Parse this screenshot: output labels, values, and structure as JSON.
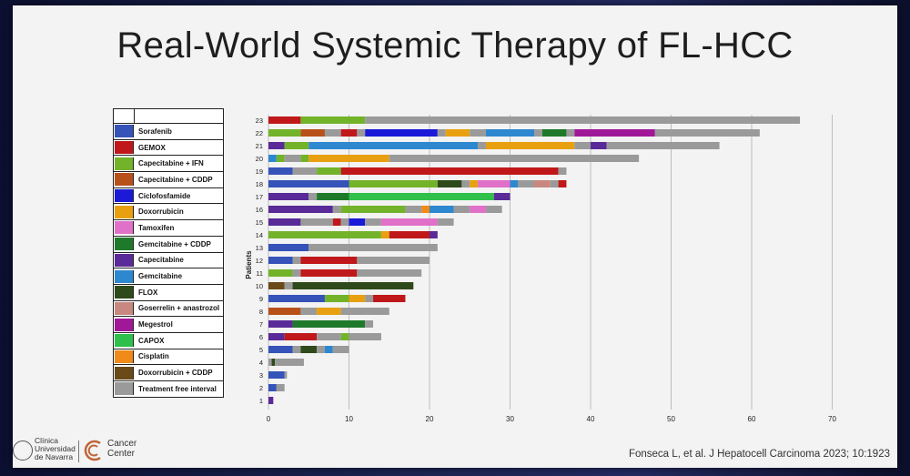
{
  "title": "Real-World Systemic Therapy of FL-HCC",
  "legend": [
    {
      "label": "Sorafenib",
      "color": "#3553b8"
    },
    {
      "label": "GEMOX",
      "color": "#c0181a"
    },
    {
      "label": "Capecitabine + IFN",
      "color": "#72b32a"
    },
    {
      "label": "Capecitabine + CDDP",
      "color": "#b8501a"
    },
    {
      "label": "Ciclofosfamide",
      "color": "#1a1ad8"
    },
    {
      "label": "Doxorrubicin",
      "color": "#e8a010"
    },
    {
      "label": "Tamoxifen",
      "color": "#e070c8"
    },
    {
      "label": "Gemcitabine + CDDP",
      "color": "#1e7a2a"
    },
    {
      "label": "Capecitabine",
      "color": "#5a2a98"
    },
    {
      "label": "Gemcitabine",
      "color": "#2e88d0"
    },
    {
      "label": "FLOX",
      "color": "#2e4a1a"
    },
    {
      "label": "Goserrelin + anastrozol",
      "color": "#c88880"
    },
    {
      "label": "Megestrol",
      "color": "#a01898"
    },
    {
      "label": "CAPOX",
      "color": "#2ec04a"
    },
    {
      "label": "Cisplatin",
      "color": "#f08a18"
    },
    {
      "label": "Doxorrubicin + CDDP",
      "color": "#6a4a18"
    },
    {
      "label": "Treatment free interval",
      "color": "#9a9a9a"
    }
  ],
  "chart_data": {
    "type": "bar",
    "orientation": "horizontal-stacked",
    "ylabel": "Patients",
    "xlabel": "",
    "xlim": [
      0,
      70
    ],
    "xticks": [
      0,
      10,
      20,
      30,
      40,
      50,
      60,
      70
    ],
    "grid": true,
    "patients": [
      {
        "id": "23",
        "segments": [
          [
            "GEMOX",
            4
          ],
          [
            "Capecitabine + IFN",
            8
          ],
          [
            "Treatment free interval",
            54
          ]
        ]
      },
      {
        "id": "22",
        "segments": [
          [
            "Capecitabine + IFN",
            4
          ],
          [
            "Capecitabine + CDDP",
            3
          ],
          [
            "Treatment free interval",
            2
          ],
          [
            "GEMOX",
            2
          ],
          [
            "Treatment free interval",
            1
          ],
          [
            "Ciclofosfamide",
            9
          ],
          [
            "Treatment free interval",
            1
          ],
          [
            "Doxorrubicin",
            3
          ],
          [
            "Treatment free interval",
            2
          ],
          [
            "Gemcitabine",
            6
          ],
          [
            "Treatment free interval",
            1
          ],
          [
            "Gemcitabine + CDDP",
            3
          ],
          [
            "Treatment free interval",
            1
          ],
          [
            "Megestrol",
            10
          ],
          [
            "Treatment free interval",
            13
          ]
        ]
      },
      {
        "id": "21",
        "segments": [
          [
            "Capecitabine",
            2
          ],
          [
            "Capecitabine + IFN",
            3
          ],
          [
            "Gemcitabine",
            21
          ],
          [
            "Treatment free interval",
            1
          ],
          [
            "Doxorrubicin",
            11
          ],
          [
            "Treatment free interval",
            2
          ],
          [
            "Capecitabine",
            2
          ],
          [
            "Treatment free interval",
            14
          ]
        ]
      },
      {
        "id": "20",
        "segments": [
          [
            "Gemcitabine",
            1
          ],
          [
            "Capecitabine + IFN",
            1
          ],
          [
            "Treatment free interval",
            2
          ],
          [
            "Capecitabine + IFN",
            1
          ],
          [
            "Doxorrubicin",
            10
          ],
          [
            "Treatment free interval",
            31
          ]
        ]
      },
      {
        "id": "19",
        "segments": [
          [
            "Sorafenib",
            3
          ],
          [
            "Treatment free interval",
            3
          ],
          [
            "Capecitabine + IFN",
            3
          ],
          [
            "GEMOX",
            27
          ],
          [
            "Treatment free interval",
            1
          ]
        ]
      },
      {
        "id": "18",
        "segments": [
          [
            "Sorafenib",
            10
          ],
          [
            "Capecitabine + IFN",
            11
          ],
          [
            "FLOX",
            3
          ],
          [
            "Treatment free interval",
            1
          ],
          [
            "Doxorrubicin",
            1
          ],
          [
            "Tamoxifen",
            4
          ],
          [
            "Gemcitabine",
            1
          ],
          [
            "Treatment free interval",
            2
          ],
          [
            "Goserrelin + anastrozol",
            2
          ],
          [
            "Treatment free interval",
            1
          ],
          [
            "GEMOX",
            1
          ]
        ]
      },
      {
        "id": "17",
        "segments": [
          [
            "Capecitabine",
            5
          ],
          [
            "Treatment free interval",
            1
          ],
          [
            "Gemcitabine + CDDP",
            4
          ],
          [
            "CAPOX",
            18
          ],
          [
            "Capecitabine",
            2
          ]
        ]
      },
      {
        "id": "16",
        "segments": [
          [
            "Capecitabine",
            8
          ],
          [
            "Treatment free interval",
            1
          ],
          [
            "Capecitabine + IFN",
            8
          ],
          [
            "Treatment free interval",
            2
          ],
          [
            "Cisplatin",
            1
          ],
          [
            "Gemcitabine",
            3
          ],
          [
            "Treatment free interval",
            2
          ],
          [
            "Tamoxifen",
            2
          ],
          [
            "Treatment free interval",
            2
          ]
        ]
      },
      {
        "id": "15",
        "segments": [
          [
            "Capecitabine",
            4
          ],
          [
            "Treatment free interval",
            4
          ],
          [
            "GEMOX",
            1
          ],
          [
            "Treatment free interval",
            1
          ],
          [
            "Ciclofosfamide",
            2
          ],
          [
            "Treatment free interval",
            2
          ],
          [
            "Tamoxifen",
            7
          ],
          [
            "Treatment free interval",
            2
          ]
        ]
      },
      {
        "id": "14",
        "segments": [
          [
            "Capecitabine + IFN",
            14
          ],
          [
            "Doxorrubicin",
            1
          ],
          [
            "GEMOX",
            5
          ],
          [
            "Capecitabine",
            1
          ]
        ]
      },
      {
        "id": "13",
        "segments": [
          [
            "Sorafenib",
            5
          ],
          [
            "Treatment free interval",
            16
          ]
        ]
      },
      {
        "id": "12",
        "segments": [
          [
            "Sorafenib",
            3
          ],
          [
            "Treatment free interval",
            1
          ],
          [
            "GEMOX",
            7
          ],
          [
            "Treatment free interval",
            9
          ]
        ]
      },
      {
        "id": "11",
        "segments": [
          [
            "Capecitabine + IFN",
            3
          ],
          [
            "Treatment free interval",
            1
          ],
          [
            "GEMOX",
            7
          ],
          [
            "Treatment free interval",
            8
          ]
        ]
      },
      {
        "id": "10",
        "segments": [
          [
            "Doxorrubicin + CDDP",
            2
          ],
          [
            "Treatment free interval",
            1
          ],
          [
            "FLOX",
            15
          ]
        ]
      },
      {
        "id": "9",
        "segments": [
          [
            "Sorafenib",
            7
          ],
          [
            "Capecitabine + IFN",
            3
          ],
          [
            "Doxorrubicin",
            2
          ],
          [
            "Treatment free interval",
            1
          ],
          [
            "GEMOX",
            4
          ]
        ]
      },
      {
        "id": "8",
        "segments": [
          [
            "Capecitabine + CDDP",
            4
          ],
          [
            "Treatment free interval",
            2
          ],
          [
            "Doxorrubicin",
            3
          ],
          [
            "Treatment free interval",
            6
          ]
        ]
      },
      {
        "id": "7",
        "segments": [
          [
            "Capecitabine",
            3
          ],
          [
            "Gemcitabine + CDDP",
            9
          ],
          [
            "Treatment free interval",
            1
          ]
        ]
      },
      {
        "id": "6",
        "segments": [
          [
            "Capecitabine",
            2
          ],
          [
            "GEMOX",
            4
          ],
          [
            "Treatment free interval",
            3
          ],
          [
            "Capecitabine + IFN",
            1
          ],
          [
            "Treatment free interval",
            4
          ]
        ]
      },
      {
        "id": "5",
        "segments": [
          [
            "Sorafenib",
            3
          ],
          [
            "Treatment free interval",
            1
          ],
          [
            "FLOX",
            2
          ],
          [
            "Treatment free interval",
            1
          ],
          [
            "Gemcitabine",
            1
          ],
          [
            "Treatment free interval",
            2
          ]
        ]
      },
      {
        "id": "4",
        "segments": [
          [
            "Treatment free interval",
            0.4
          ],
          [
            "FLOX",
            0.4
          ],
          [
            "Treatment free interval",
            3.6
          ]
        ]
      },
      {
        "id": "3",
        "segments": [
          [
            "Sorafenib",
            2
          ],
          [
            "Treatment free interval",
            0.3
          ]
        ]
      },
      {
        "id": "2",
        "segments": [
          [
            "Sorafenib",
            1
          ],
          [
            "Treatment free interval",
            1
          ]
        ]
      },
      {
        "id": "1",
        "segments": [
          [
            "Capecitabine",
            0.6
          ]
        ]
      }
    ]
  },
  "footer": {
    "institution_lines": [
      "Clínica",
      "Universidad",
      "de Navarra"
    ],
    "center_lines": [
      "Cancer",
      "Center"
    ],
    "citation": "Fonseca L, et al. J Hepatocell Carcinoma 2023; 10:1923"
  }
}
